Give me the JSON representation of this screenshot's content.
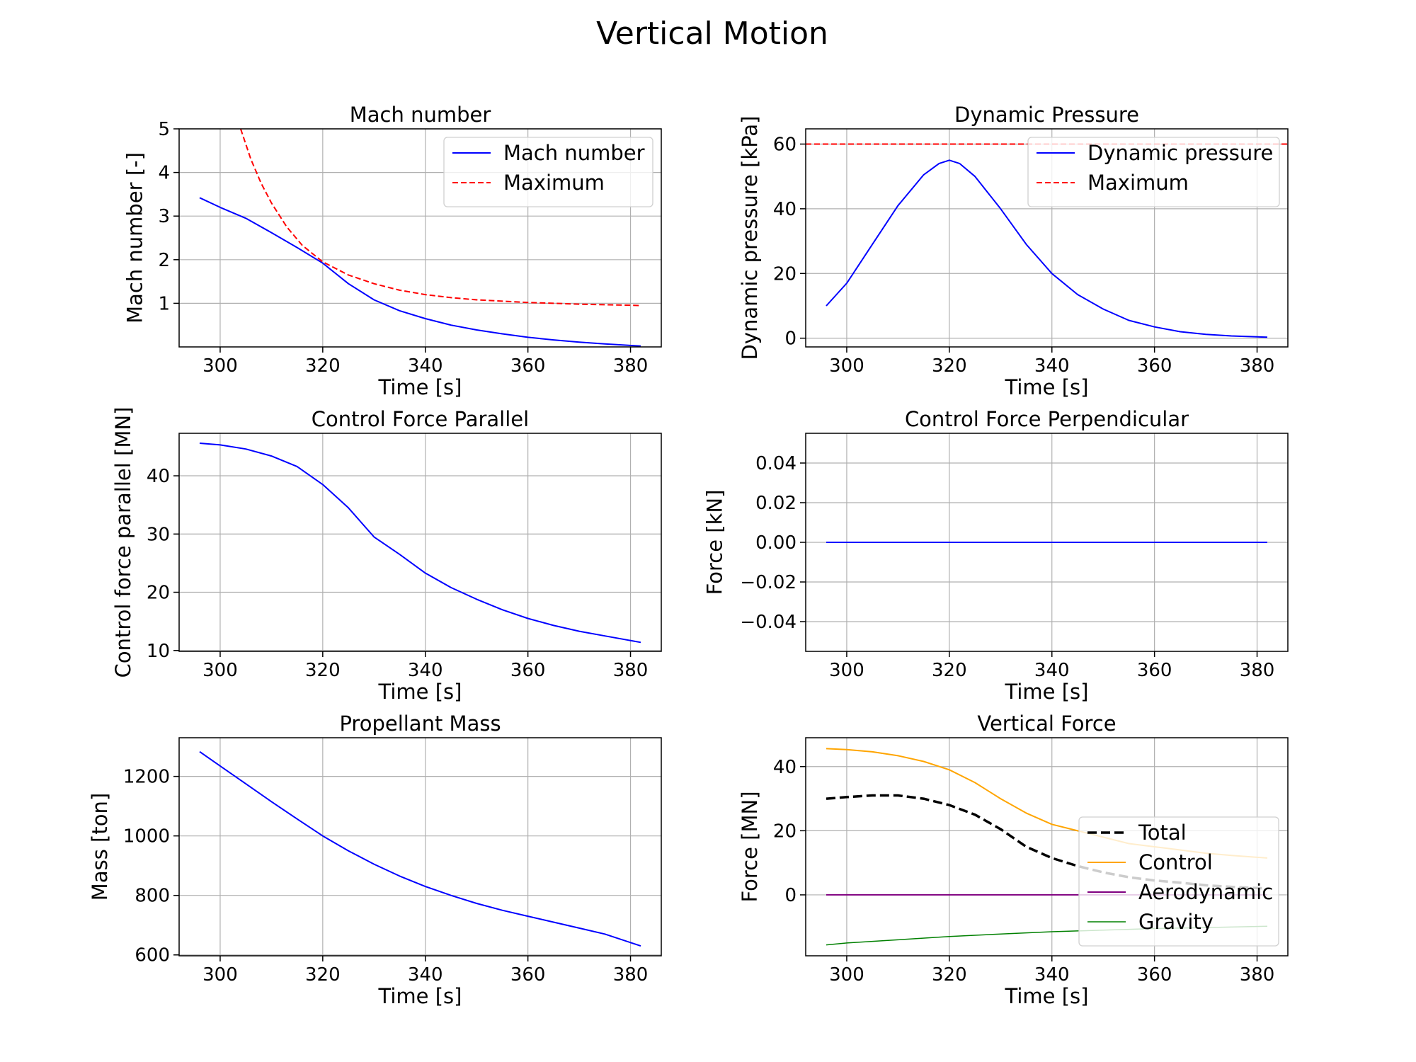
{
  "figure": {
    "title": "Vertical Motion"
  },
  "chart_data": [
    {
      "type": "line",
      "title": "Mach number",
      "xlabel": "Time [s]",
      "ylabel": "Mach number [-]",
      "xlim": [
        292,
        386
      ],
      "ylim": [
        0,
        5
      ],
      "xticks": [
        300,
        320,
        340,
        360,
        380
      ],
      "yticks": [
        1,
        2,
        3,
        4,
        5
      ],
      "yfmt": 0,
      "grid": true,
      "legend": "top-right",
      "series": [
        {
          "name": "Mach number",
          "color": "#0000ff",
          "dash": "solid",
          "width": 2,
          "x": [
            296,
            300,
            305,
            310,
            315,
            320,
            325,
            330,
            335,
            340,
            345,
            350,
            355,
            360,
            365,
            370,
            375,
            382
          ],
          "y": [
            3.42,
            3.2,
            2.95,
            2.62,
            2.28,
            1.92,
            1.45,
            1.08,
            0.83,
            0.65,
            0.5,
            0.39,
            0.3,
            0.22,
            0.16,
            0.11,
            0.07,
            0.02
          ]
        },
        {
          "name": "Maximum",
          "color": "#ff0000",
          "dash": "dashed",
          "width": 2,
          "x": [
            304,
            306,
            308,
            310,
            313,
            316,
            320,
            325,
            330,
            335,
            340,
            345,
            350,
            360,
            370,
            382
          ],
          "y": [
            5.0,
            4.3,
            3.75,
            3.3,
            2.75,
            2.33,
            1.95,
            1.65,
            1.45,
            1.3,
            1.2,
            1.13,
            1.08,
            1.02,
            0.98,
            0.95
          ]
        }
      ]
    },
    {
      "type": "line",
      "title": "Dynamic Pressure",
      "xlabel": "Time [s]",
      "ylabel": "Dynamic pressure [kPa]",
      "xlim": [
        292,
        386
      ],
      "ylim": [
        -2.7,
        64.7
      ],
      "xticks": [
        300,
        320,
        340,
        360,
        380
      ],
      "yticks": [
        0,
        20,
        40,
        60
      ],
      "yfmt": 0,
      "grid": true,
      "legend": "top-right",
      "series": [
        {
          "name": "Dynamic pressure",
          "color": "#0000ff",
          "dash": "solid",
          "width": 2,
          "x": [
            296,
            300,
            305,
            310,
            315,
            318,
            320,
            322,
            325,
            330,
            335,
            340,
            345,
            350,
            355,
            360,
            365,
            370,
            375,
            382
          ],
          "y": [
            10,
            17,
            29,
            41,
            50.5,
            54,
            55,
            54,
            50,
            40,
            29,
            20,
            13.5,
            9,
            5.5,
            3.5,
            2,
            1.2,
            0.7,
            0.3
          ]
        },
        {
          "name": "Maximum",
          "color": "#ff0000",
          "dash": "dashed",
          "width": 2,
          "extend": true,
          "x": [
            292,
            386
          ],
          "y": [
            60,
            60
          ]
        }
      ]
    },
    {
      "type": "line",
      "title": "Control Force Parallel",
      "xlabel": "Time [s]",
      "ylabel": "Control force parallel [MN]",
      "xlim": [
        292,
        386
      ],
      "ylim": [
        9.85,
        47.3
      ],
      "xticks": [
        300,
        320,
        340,
        360,
        380
      ],
      "yticks": [
        10,
        20,
        30,
        40
      ],
      "yfmt": 0,
      "grid": true,
      "series": [
        {
          "name": "",
          "color": "#0000ff",
          "dash": "solid",
          "width": 2,
          "x": [
            296,
            300,
            305,
            310,
            315,
            320,
            325,
            330,
            335,
            340,
            345,
            350,
            355,
            360,
            365,
            370,
            375,
            382
          ],
          "y": [
            45.6,
            45.3,
            44.6,
            43.4,
            41.6,
            38.5,
            34.5,
            29.5,
            26.5,
            23.3,
            20.8,
            18.8,
            17.0,
            15.5,
            14.3,
            13.3,
            12.5,
            11.4
          ]
        }
      ]
    },
    {
      "type": "line",
      "title": "Control Force Perpendicular",
      "xlabel": "Time [s]",
      "ylabel": "Force [kN]",
      "xlim": [
        292,
        386
      ],
      "ylim": [
        -0.055,
        0.055
      ],
      "xticks": [
        300,
        320,
        340,
        360,
        380
      ],
      "yticks": [
        -0.04,
        -0.02,
        0.0,
        0.02,
        0.04
      ],
      "yfmt": 2,
      "grid": true,
      "series": [
        {
          "name": "",
          "color": "#0000ff",
          "dash": "solid",
          "width": 2,
          "x": [
            296,
            382
          ],
          "y": [
            0,
            0
          ]
        }
      ]
    },
    {
      "type": "line",
      "title": "Propellant Mass",
      "xlabel": "Time [s]",
      "ylabel": "Mass [ton]",
      "xlim": [
        292,
        386
      ],
      "ylim": [
        597,
        1330
      ],
      "xticks": [
        300,
        320,
        340,
        360,
        380
      ],
      "yticks": [
        600,
        800,
        1000,
        1200
      ],
      "yfmt": 0,
      "grid": true,
      "series": [
        {
          "name": "",
          "color": "#0000ff",
          "dash": "solid",
          "width": 2,
          "x": [
            296,
            300,
            305,
            310,
            315,
            320,
            325,
            330,
            335,
            340,
            345,
            350,
            355,
            360,
            365,
            370,
            375,
            382
          ],
          "y": [
            1283,
            1235,
            1175,
            1115,
            1057,
            1000,
            950,
            905,
            865,
            830,
            800,
            773,
            750,
            730,
            710,
            690,
            670,
            630
          ]
        }
      ]
    },
    {
      "type": "line",
      "title": "Vertical Force",
      "xlabel": "Time [s]",
      "ylabel": "Force [MN]",
      "xlim": [
        292,
        386
      ],
      "ylim": [
        -19,
        49
      ],
      "xticks": [
        300,
        320,
        340,
        360,
        380
      ],
      "yticks": [
        0,
        20,
        40
      ],
      "yfmt": 0,
      "grid": true,
      "legend": "lower-right",
      "series": [
        {
          "name": "Total",
          "color": "#000000",
          "dash": "dashed",
          "width": 3.5,
          "x": [
            296,
            300,
            305,
            310,
            315,
            320,
            325,
            330,
            335,
            340,
            345,
            350,
            355,
            360,
            365,
            370,
            375,
            382
          ],
          "y": [
            30,
            30.5,
            31,
            31,
            30,
            28,
            25,
            20.5,
            15,
            11.5,
            9,
            7,
            5.5,
            4.5,
            3.8,
            3.0,
            2.5,
            2.0
          ]
        },
        {
          "name": "Control",
          "color": "#ffa500",
          "dash": "solid",
          "width": 2,
          "x": [
            296,
            300,
            305,
            310,
            315,
            320,
            325,
            330,
            335,
            340,
            345,
            350,
            355,
            360,
            365,
            370,
            375,
            382
          ],
          "y": [
            45.6,
            45.3,
            44.6,
            43.4,
            41.6,
            39.0,
            35.0,
            30.0,
            25.5,
            22.0,
            20.0,
            18.0,
            16.0,
            15.0,
            14.0,
            13.0,
            12.3,
            11.5
          ]
        },
        {
          "name": "Aerodynamic",
          "color": "#800080",
          "dash": "solid",
          "width": 2,
          "x": [
            296,
            382
          ],
          "y": [
            0,
            0
          ]
        },
        {
          "name": "Gravity",
          "color": "#008000",
          "dash": "solid",
          "width": 1.5,
          "x": [
            296,
            300,
            310,
            320,
            330,
            340,
            350,
            360,
            370,
            382
          ],
          "y": [
            -15.6,
            -15.0,
            -14.0,
            -13.0,
            -12.2,
            -11.5,
            -11.0,
            -10.5,
            -10.2,
            -9.8
          ]
        }
      ]
    }
  ]
}
